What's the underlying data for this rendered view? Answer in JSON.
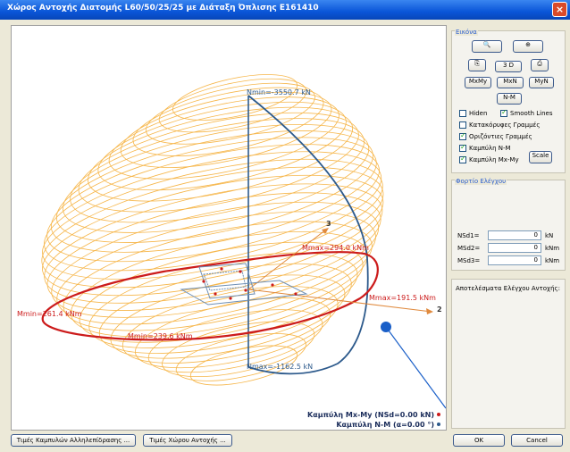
{
  "window": {
    "title": "Χώρος Αντοχής Διατομής L60/50/25/25 με Διάταξη Όπλισης Ε161410",
    "close": "×"
  },
  "plot": {
    "labels": {
      "nmin": "Nmin=-3550.7 kN",
      "nmax": "Nmax=-1162.5 kN",
      "mmax1": "Mmax=294.0 kNm",
      "mmax2": "Mmax=191.5 kNm",
      "mmin1": "Mmin=261.4 kNm",
      "mmin2": "Mmin=239.6 kNm",
      "axis2": "2",
      "axis3": "3"
    },
    "legend": {
      "mxmy": "Καμπύλη Mx-My (NSd=0.00 kN)",
      "nm": "Καμπύλη N-M (α=0.00 °)"
    },
    "colors": {
      "mxmy": "#cc1b1b",
      "nm": "#2d5a8c",
      "surface": "#f6b64a",
      "axis": "#e08a3e"
    }
  },
  "panel": {
    "image_title": "Εικόνα",
    "buttons": {
      "zoom_out": "🔍",
      "zoom_in": "⊕",
      "copy": "⎘",
      "view3d": "3 D",
      "print": "⎙",
      "mxmy": "MxMy",
      "mxn": "MxN",
      "myn": "MyN",
      "nm": "N-M",
      "scale": "Scale"
    },
    "checks": {
      "hiden": {
        "label": "Hiden",
        "checked": false
      },
      "smooth": {
        "label": "Smooth Lines",
        "checked": true
      },
      "vertical": {
        "label": "Κατακόρυφες Γραμμές",
        "checked": false
      },
      "horizontal": {
        "label": "Οριζόντιες Γραμμές",
        "checked": true
      },
      "curve_nm": {
        "label": "Καμπύλη N-M",
        "checked": true
      },
      "curve_mxmy": {
        "label": "Καμπύλη Mx-My",
        "checked": true
      }
    },
    "load_title": "Φορτίο Ελέγχου",
    "inputs": [
      {
        "label": "NSd1=",
        "value": "0",
        "unit": "kN"
      },
      {
        "label": "MSd2=",
        "value": "0",
        "unit": "kNm"
      },
      {
        "label": "MSd3=",
        "value": "0",
        "unit": "kNm"
      }
    ],
    "results_title": "Αποτελέσματα Ελέγχου Αντοχής:"
  },
  "bottom": {
    "interaction_btn": "Τιμές Καμπυλών Αλληλεπίδρασης ...",
    "space_btn": "Τιμές Χώρου Αντοχής ...",
    "ok": "OK",
    "cancel": "Cancel"
  }
}
